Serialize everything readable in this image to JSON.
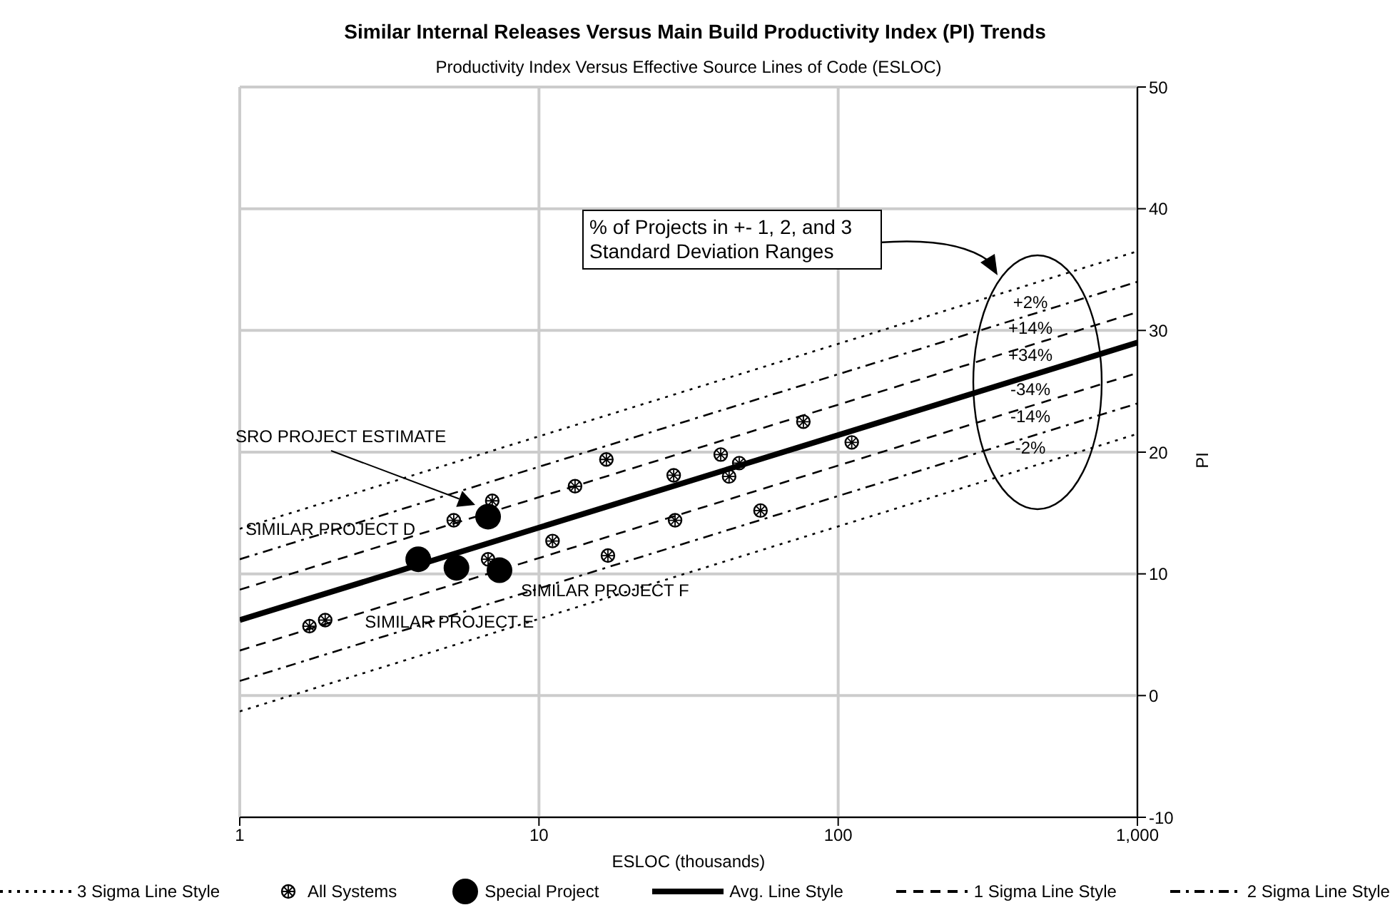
{
  "chart_data": {
    "type": "scatter",
    "title": "Similar Internal Releases Versus Main Build Productivity Index (PI) Trends",
    "subtitle": "Productivity Index Versus Effective Source Lines of Code (ESLOC)",
    "xlabel": "ESLOC (thousands)",
    "ylabel": "PI",
    "log": "x",
    "xlim": [
      1,
      1000
    ],
    "xticks": [
      1,
      10,
      100,
      {
        "value": 1000,
        "label": "1,000"
      }
    ],
    "ylim": [
      -10,
      50
    ],
    "yticks": [
      -10,
      0,
      10,
      20,
      30,
      40,
      50
    ],
    "grid": true,
    "legend": "bottom",
    "series": [
      {
        "name": "3 Sigma Line Style",
        "type": "line",
        "line_style": "dotted",
        "color": "#000000",
        "x": [
          1,
          1000
        ],
        "values": [
          13.7,
          36.5
        ]
      },
      {
        "name": "All Systems",
        "marker": "circle",
        "color": "#000000",
        "x": [
          1.71,
          1.93,
          5.19,
          6.98,
          6.76,
          11.1,
          13.2,
          16.8,
          17.0,
          28.2,
          28.5,
          40.5,
          43.2,
          46.7,
          55,
          76.5,
          111
        ],
        "values": [
          5.7,
          6.2,
          14.4,
          16.0,
          11.2,
          12.7,
          17.2,
          19.4,
          11.5,
          18.1,
          14.4,
          19.8,
          18.0,
          19.1,
          15.2,
          22.5,
          20.8
        ]
      },
      {
        "name": "Special Project",
        "marker": "circle",
        "color": "#000000",
        "x": [
          3.95,
          5.3,
          7.38,
          6.76
        ],
        "values": [
          11.2,
          10.5,
          10.3,
          14.7
        ]
      },
      {
        "name": "Avg. Line Style",
        "type": "line",
        "line_style": "solid",
        "color": "#000000",
        "x": [
          1,
          1000
        ],
        "values": [
          6.2,
          29.0
        ]
      },
      {
        "name": "1 Sigma Line Style",
        "type": "line",
        "line_style": "dashed",
        "color": "#000000",
        "x": [
          1,
          1000
        ],
        "values": [
          8.7,
          31.5
        ]
      },
      {
        "name": "2 Sigma Line Style",
        "type": "line",
        "line_style": "dashdot",
        "color": "#000000",
        "x": [
          1,
          1000
        ],
        "values": [
          11.2,
          34.0
        ]
      },
      {
        "type": "line",
        "line_style": "dashed",
        "color": "#000000",
        "x": [
          1,
          1000
        ],
        "values": [
          3.7,
          26.5
        ]
      },
      {
        "type": "line",
        "line_style": "dashdot",
        "color": "#000000",
        "x": [
          1,
          1000
        ],
        "values": [
          1.2,
          24.0
        ]
      },
      {
        "type": "line",
        "line_style": "dotted",
        "color": "#000000",
        "x": [
          1,
          1000
        ],
        "values": [
          -1.3,
          21.5
        ]
      }
    ],
    "annotations": [
      "SRO PROJECT ESTIMATE",
      {
        "text": "SIMILAR PROJECT D",
        "x": 3.95,
        "y": 11.2
      },
      {
        "text": "SIMILAR PROJECT E",
        "x": 5.3,
        "y": 10.5
      },
      {
        "text": "SIMILAR PROJECT F",
        "x": 7.38,
        "y": 10.3
      },
      "% of Projects in +- 1, 2, and 3 Standard Deviation Ranges",
      "+2%",
      "+14%",
      "+34%",
      "-34%",
      "-14%",
      "-2%"
    ]
  }
}
